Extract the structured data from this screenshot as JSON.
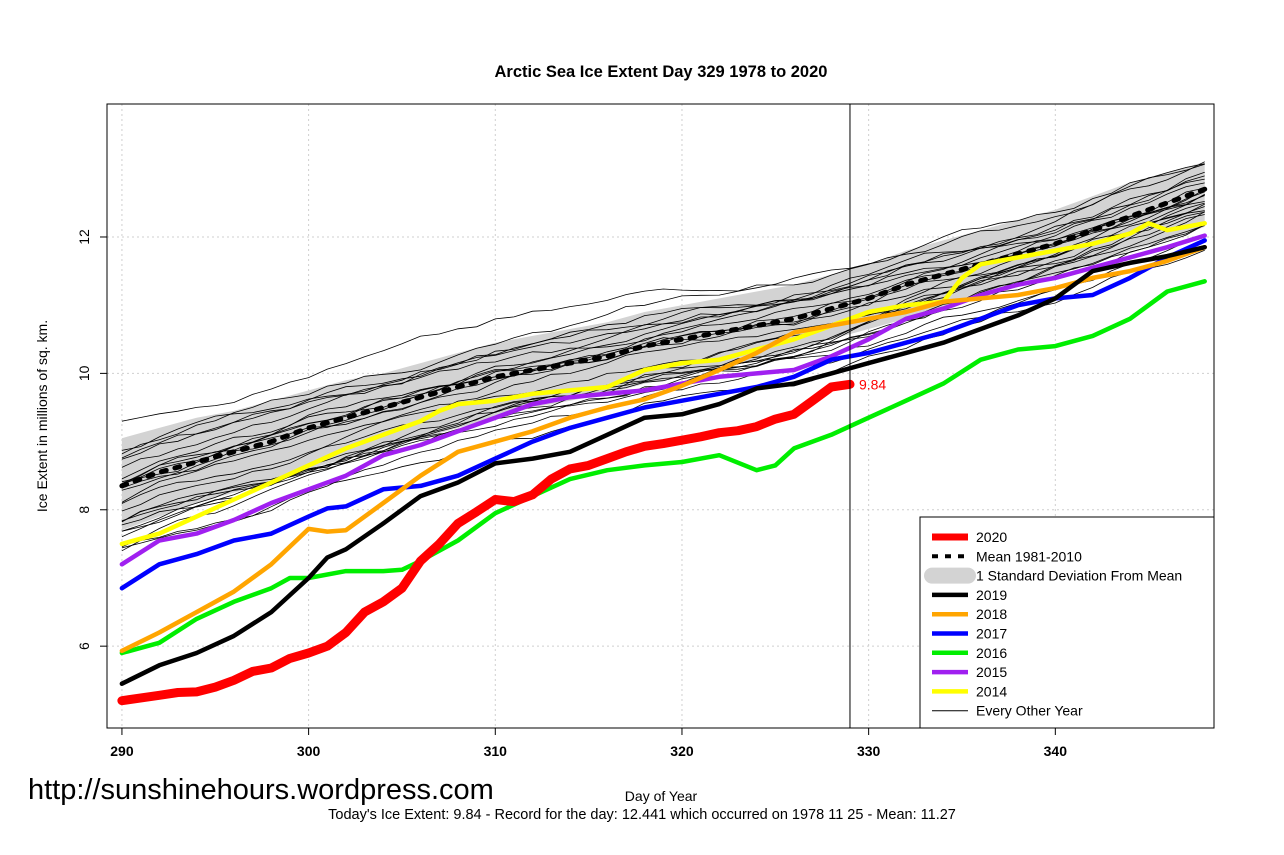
{
  "chart_data": {
    "type": "line",
    "title": "Arctic Sea Ice Extent Day 329 1978 to 2020",
    "xlabel": "Day of Year",
    "ylabel": "Ice Extent in millions of sq. km.",
    "xlim": [
      289.2,
      348.5
    ],
    "ylim": [
      4.8,
      13.95
    ],
    "x_ticks": [
      290,
      300,
      310,
      320,
      330,
      340
    ],
    "y_ticks": [
      6,
      8,
      10,
      12
    ],
    "grid": true,
    "legend_position": "bottom-right",
    "current_day": 329,
    "current_value_label": "9.84",
    "std_band": {
      "name": "1 Standard Deviation From Mean",
      "x": [
        290,
        292,
        294,
        296,
        298,
        300,
        302,
        304,
        306,
        308,
        310,
        312,
        314,
        316,
        318,
        320,
        322,
        324,
        326,
        328,
        330,
        332,
        334,
        336,
        338,
        340,
        342,
        344,
        346,
        348
      ],
      "upper": [
        9.05,
        9.2,
        9.35,
        9.45,
        9.6,
        9.75,
        9.9,
        10.0,
        10.15,
        10.3,
        10.45,
        10.55,
        10.65,
        10.75,
        10.9,
        11.0,
        11.1,
        11.2,
        11.3,
        11.45,
        11.6,
        11.8,
        11.95,
        12.1,
        12.25,
        12.4,
        12.6,
        12.8,
        12.95,
        13.1
      ],
      "lower": [
        7.7,
        7.9,
        8.1,
        8.25,
        8.4,
        8.6,
        8.75,
        8.9,
        9.05,
        9.2,
        9.35,
        9.5,
        9.6,
        9.7,
        9.85,
        9.95,
        10.1,
        10.2,
        10.35,
        10.5,
        10.65,
        10.8,
        10.95,
        11.1,
        11.3,
        11.45,
        11.6,
        11.8,
        11.95,
        12.15
      ]
    },
    "mean": {
      "name": "Mean 1981-2010",
      "x": [
        290,
        292,
        294,
        296,
        298,
        300,
        302,
        304,
        306,
        308,
        310,
        312,
        314,
        316,
        318,
        320,
        322,
        324,
        326,
        328,
        330,
        332,
        334,
        336,
        338,
        340,
        342,
        344,
        346,
        348
      ],
      "values": [
        8.35,
        8.55,
        8.7,
        8.85,
        9.0,
        9.2,
        9.35,
        9.5,
        9.65,
        9.8,
        9.95,
        10.05,
        10.15,
        10.25,
        10.4,
        10.5,
        10.6,
        10.7,
        10.8,
        10.95,
        11.1,
        11.3,
        11.45,
        11.6,
        11.75,
        11.9,
        12.1,
        12.3,
        12.5,
        12.7
      ]
    },
    "series": [
      {
        "name": "2020",
        "color": "#ff0000",
        "x": [
          290,
          292,
          293,
          294,
          295,
          296,
          297,
          298,
          299,
          300,
          301,
          302,
          303,
          304,
          305,
          306,
          307,
          308,
          309,
          310,
          311,
          312,
          313,
          314,
          315,
          316,
          317,
          318,
          319,
          320,
          321,
          322,
          323,
          324,
          325,
          326,
          327,
          328,
          329
        ],
        "values": [
          5.2,
          5.28,
          5.32,
          5.33,
          5.4,
          5.5,
          5.63,
          5.68,
          5.82,
          5.9,
          6.0,
          6.2,
          6.5,
          6.65,
          6.85,
          7.25,
          7.5,
          7.8,
          7.97,
          8.15,
          8.12,
          8.22,
          8.45,
          8.6,
          8.65,
          8.75,
          8.85,
          8.93,
          8.97,
          9.02,
          9.07,
          9.13,
          9.16,
          9.22,
          9.33,
          9.4,
          9.6,
          9.8,
          9.84
        ]
      },
      {
        "name": "2019",
        "color": "#000000",
        "x": [
          290,
          292,
          294,
          296,
          298,
          300,
          301,
          302,
          304,
          306,
          308,
          310,
          312,
          314,
          316,
          318,
          320,
          322,
          324,
          326,
          328,
          330,
          332,
          334,
          336,
          338,
          340,
          342,
          344,
          346,
          348
        ],
        "values": [
          5.45,
          5.72,
          5.9,
          6.15,
          6.5,
          7.0,
          7.3,
          7.42,
          7.8,
          8.2,
          8.4,
          8.68,
          8.75,
          8.85,
          9.1,
          9.35,
          9.4,
          9.55,
          9.78,
          9.85,
          10.0,
          10.15,
          10.3,
          10.45,
          10.65,
          10.85,
          11.1,
          11.5,
          11.62,
          11.72,
          11.85
        ]
      },
      {
        "name": "2018",
        "color": "#ffa500",
        "x": [
          290,
          292,
          294,
          296,
          298,
          300,
          301,
          302,
          304,
          306,
          308,
          310,
          312,
          314,
          316,
          318,
          320,
          322,
          324,
          326,
          328,
          330,
          332,
          334,
          336,
          338,
          340,
          342,
          344,
          346,
          348
        ],
        "values": [
          5.93,
          6.2,
          6.5,
          6.8,
          7.2,
          7.72,
          7.68,
          7.7,
          8.1,
          8.5,
          8.85,
          9.0,
          9.15,
          9.35,
          9.5,
          9.62,
          9.82,
          10.05,
          10.3,
          10.6,
          10.7,
          10.8,
          10.9,
          11.05,
          11.1,
          11.15,
          11.25,
          11.4,
          11.5,
          11.65,
          11.85
        ]
      },
      {
        "name": "2017",
        "color": "#0000ff",
        "x": [
          290,
          292,
          294,
          296,
          298,
          300,
          301,
          302,
          304,
          306,
          308,
          310,
          312,
          314,
          316,
          318,
          320,
          322,
          324,
          326,
          328,
          330,
          332,
          334,
          336,
          338,
          340,
          342,
          344,
          346,
          348
        ],
        "values": [
          6.85,
          7.2,
          7.35,
          7.55,
          7.65,
          7.9,
          8.02,
          8.05,
          8.3,
          8.35,
          8.5,
          8.75,
          9.0,
          9.2,
          9.35,
          9.5,
          9.6,
          9.7,
          9.8,
          9.95,
          10.2,
          10.3,
          10.45,
          10.6,
          10.8,
          11.0,
          11.1,
          11.15,
          11.4,
          11.7,
          11.95
        ]
      },
      {
        "name": "2016",
        "color": "#00ee00",
        "x": [
          290,
          292,
          294,
          296,
          298,
          299,
          300,
          302,
          304,
          305,
          306,
          308,
          310,
          312,
          314,
          316,
          318,
          320,
          322,
          324,
          325,
          326,
          328,
          330,
          332,
          334,
          336,
          338,
          340,
          342,
          344,
          346,
          348
        ],
        "values": [
          5.9,
          6.05,
          6.4,
          6.65,
          6.85,
          7.0,
          7.0,
          7.1,
          7.1,
          7.12,
          7.25,
          7.55,
          7.95,
          8.2,
          8.45,
          8.58,
          8.65,
          8.7,
          8.8,
          8.58,
          8.65,
          8.9,
          9.1,
          9.35,
          9.6,
          9.85,
          10.2,
          10.35,
          10.4,
          10.55,
          10.8,
          11.2,
          11.35
        ]
      },
      {
        "name": "2015",
        "color": "#a020f0",
        "x": [
          290,
          292,
          294,
          296,
          298,
          300,
          302,
          304,
          306,
          308,
          310,
          312,
          314,
          316,
          318,
          320,
          322,
          324,
          326,
          328,
          330,
          332,
          334,
          336,
          338,
          340,
          342,
          344,
          346,
          348
        ],
        "values": [
          7.2,
          7.55,
          7.65,
          7.85,
          8.1,
          8.3,
          8.5,
          8.8,
          8.95,
          9.15,
          9.35,
          9.55,
          9.65,
          9.7,
          9.75,
          9.85,
          9.95,
          10.0,
          10.05,
          10.25,
          10.5,
          10.8,
          10.95,
          11.15,
          11.3,
          11.4,
          11.55,
          11.7,
          11.85,
          12.02
        ]
      },
      {
        "name": "2014",
        "color": "#ffff00",
        "x": [
          290,
          292,
          294,
          296,
          298,
          300,
          302,
          304,
          306,
          307,
          308,
          310,
          312,
          314,
          316,
          318,
          320,
          322,
          324,
          326,
          328,
          330,
          332,
          334,
          335,
          336,
          338,
          340,
          342,
          344,
          345,
          346,
          348
        ],
        "values": [
          7.5,
          7.65,
          7.9,
          8.15,
          8.4,
          8.65,
          8.9,
          9.1,
          9.3,
          9.45,
          9.55,
          9.6,
          9.7,
          9.75,
          9.8,
          10.05,
          10.15,
          10.2,
          10.35,
          10.5,
          10.7,
          10.9,
          11.0,
          11.05,
          11.4,
          11.6,
          11.7,
          11.8,
          11.9,
          12.05,
          12.2,
          12.1,
          12.2
        ]
      }
    ],
    "background_series_name": "Every Other Year",
    "legend": [
      "2020",
      "Mean 1981-2010",
      "1 Standard Deviation From Mean",
      "2019",
      "2018",
      "2017",
      "2016",
      "2015",
      "2014",
      "Every Other Year"
    ]
  },
  "watermark": "http://sunshinehours.wordpress.com",
  "footer": "Today's Ice Extent: 9.84  - Record for the day: 12.441 which occurred on 1978 11 25  - Mean: 11.27"
}
